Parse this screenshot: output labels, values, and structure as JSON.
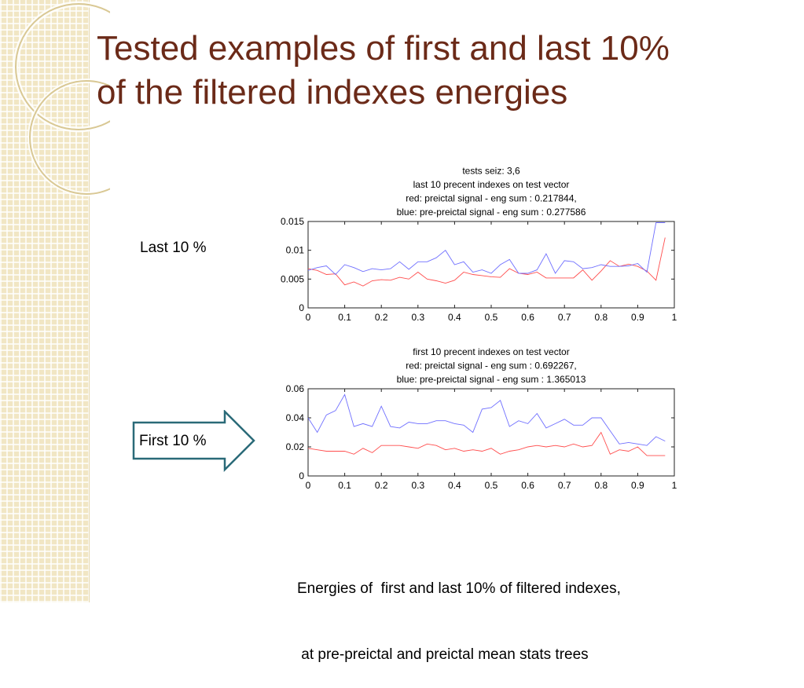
{
  "slide": {
    "title_lines": [
      "Tested examples of first and last 10%",
      "of the filtered indexes energies"
    ],
    "label_last": "Last 10 %",
    "label_first": "First 10 %",
    "caption_lines": [
      "Energies of  first and last 10% of filtered indexes,",
      " at pre-preictal and preictal mean stats trees"
    ]
  },
  "colors": {
    "title": "#6b2a18",
    "series_red": "#ff4d4d",
    "series_blue": "#6f6fff",
    "arrow_stroke": "#2a6a78",
    "side_pattern": "#f1e6c4"
  },
  "chart_data": [
    {
      "type": "line",
      "title_lines": [
        "tests seiz: 3,6",
        "last 10 precent indexes on test vector",
        "red: preictal signal - eng sum : 0.217844,",
        "blue: pre-preictal signal - eng sum : 0.277586"
      ],
      "xlim": [
        0,
        1
      ],
      "ylim": [
        0,
        0.015
      ],
      "xticks": [
        0,
        0.1,
        0.2,
        0.3,
        0.4,
        0.5,
        0.6,
        0.7,
        0.8,
        0.9,
        1
      ],
      "yticks": [
        0,
        0.005,
        0.01,
        0.015
      ],
      "xtick_labels": [
        "0",
        "0.1",
        "0.2",
        "0.3",
        "0.4",
        "0.5",
        "0.6",
        "0.7",
        "0.8",
        "0.9",
        "1"
      ],
      "ytick_labels": [
        "0",
        "0.005",
        "0.01",
        "0.015"
      ],
      "grid": false,
      "x": [
        0,
        0.025,
        0.05,
        0.075,
        0.1,
        0.125,
        0.15,
        0.175,
        0.2,
        0.225,
        0.25,
        0.275,
        0.3,
        0.325,
        0.35,
        0.375,
        0.4,
        0.425,
        0.45,
        0.475,
        0.5,
        0.525,
        0.55,
        0.575,
        0.6,
        0.625,
        0.65,
        0.675,
        0.7,
        0.725,
        0.75,
        0.775,
        0.8,
        0.825,
        0.85,
        0.875,
        0.9,
        0.925,
        0.95,
        0.975
      ],
      "series": [
        {
          "color": "red",
          "values": [
            0.0068,
            0.0065,
            0.0058,
            0.0059,
            0.004,
            0.0045,
            0.0038,
            0.0047,
            0.0049,
            0.0048,
            0.0053,
            0.005,
            0.0062,
            0.005,
            0.0047,
            0.0043,
            0.0048,
            0.0062,
            0.0058,
            0.0056,
            0.0054,
            0.0053,
            0.0068,
            0.006,
            0.0058,
            0.0062,
            0.0052,
            0.0052,
            0.0052,
            0.0052,
            0.0066,
            0.0048,
            0.0064,
            0.0082,
            0.0072,
            0.0076,
            0.0072,
            0.0064,
            0.0048,
            0.0122
          ]
        },
        {
          "color": "blue",
          "values": [
            0.0065,
            0.007,
            0.0073,
            0.0058,
            0.0075,
            0.007,
            0.0063,
            0.0068,
            0.0066,
            0.0068,
            0.008,
            0.0067,
            0.008,
            0.008,
            0.0087,
            0.01,
            0.0075,
            0.008,
            0.0062,
            0.0066,
            0.006,
            0.0075,
            0.0084,
            0.006,
            0.006,
            0.0066,
            0.0094,
            0.006,
            0.0082,
            0.008,
            0.0068,
            0.007,
            0.0075,
            0.0072,
            0.0072,
            0.0073,
            0.0077,
            0.0062,
            0.0148,
            0.0148
          ]
        }
      ]
    },
    {
      "type": "line",
      "title_lines": [
        "first 10 precent indexes on test vector",
        "red: preictal signal - eng sum : 0.692267,",
        "blue: pre-preictal signal - eng sum : 1.365013"
      ],
      "xlim": [
        0,
        1
      ],
      "ylim": [
        0,
        0.06
      ],
      "xticks": [
        0,
        0.1,
        0.2,
        0.3,
        0.4,
        0.5,
        0.6,
        0.7,
        0.8,
        0.9,
        1
      ],
      "yticks": [
        0,
        0.02,
        0.04,
        0.06
      ],
      "xtick_labels": [
        "0",
        "0.1",
        "0.2",
        "0.3",
        "0.4",
        "0.5",
        "0.6",
        "0.7",
        "0.8",
        "0.9",
        "1"
      ],
      "ytick_labels": [
        "0",
        "0.02",
        "0.04",
        "0.06"
      ],
      "grid": false,
      "x": [
        0,
        0.025,
        0.05,
        0.075,
        0.1,
        0.125,
        0.15,
        0.175,
        0.2,
        0.225,
        0.25,
        0.275,
        0.3,
        0.325,
        0.35,
        0.375,
        0.4,
        0.425,
        0.45,
        0.475,
        0.5,
        0.525,
        0.55,
        0.575,
        0.6,
        0.625,
        0.65,
        0.675,
        0.7,
        0.725,
        0.75,
        0.775,
        0.8,
        0.825,
        0.85,
        0.875,
        0.9,
        0.925,
        0.95,
        0.975
      ],
      "series": [
        {
          "color": "red",
          "values": [
            0.019,
            0.018,
            0.017,
            0.017,
            0.017,
            0.015,
            0.019,
            0.016,
            0.021,
            0.021,
            0.021,
            0.02,
            0.019,
            0.022,
            0.021,
            0.018,
            0.019,
            0.017,
            0.018,
            0.017,
            0.019,
            0.015,
            0.017,
            0.018,
            0.02,
            0.021,
            0.02,
            0.021,
            0.02,
            0.022,
            0.02,
            0.021,
            0.03,
            0.015,
            0.018,
            0.017,
            0.02,
            0.014,
            0.014,
            0.014
          ]
        },
        {
          "color": "blue",
          "values": [
            0.04,
            0.03,
            0.042,
            0.045,
            0.056,
            0.034,
            0.036,
            0.034,
            0.048,
            0.034,
            0.033,
            0.037,
            0.036,
            0.036,
            0.038,
            0.038,
            0.036,
            0.035,
            0.03,
            0.046,
            0.047,
            0.052,
            0.034,
            0.038,
            0.036,
            0.043,
            0.033,
            0.036,
            0.039,
            0.035,
            0.035,
            0.04,
            0.04,
            0.031,
            0.022,
            0.023,
            0.022,
            0.021,
            0.027,
            0.024
          ]
        }
      ]
    }
  ]
}
